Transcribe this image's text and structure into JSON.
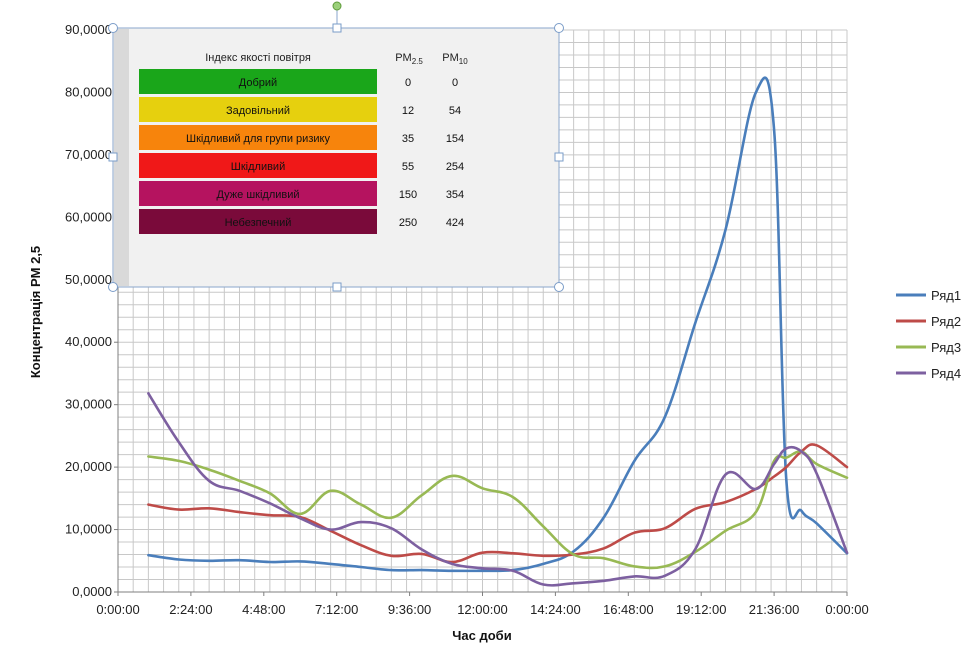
{
  "chart_data": {
    "type": "line",
    "xlabel": "Час доби",
    "ylabel": "Концентрація PM 2,5",
    "ylim": [
      0,
      90
    ],
    "xlim_hours": [
      0,
      24
    ],
    "x_tick_labels": [
      "0:00:00",
      "2:24:00",
      "4:48:00",
      "7:12:00",
      "9:36:00",
      "12:00:00",
      "14:24:00",
      "16:48:00",
      "19:12:00",
      "21:36:00",
      "0:00:00"
    ],
    "y_tick_labels": [
      "0,0000",
      "10,0000",
      "20,0000",
      "30,0000",
      "40,0000",
      "50,0000",
      "60,0000",
      "70,0000",
      "80,0000",
      "90,0000"
    ],
    "grid": true,
    "legend_position": "right",
    "x_hours": [
      1,
      2,
      3,
      4,
      5,
      6,
      7,
      8,
      9,
      10,
      11,
      12,
      13,
      14,
      15,
      16,
      17,
      18,
      19,
      20,
      21,
      21.6,
      22,
      22.5,
      23,
      24
    ],
    "series": [
      {
        "name": "Ряд1",
        "color": "#4a7ebb",
        "values": [
          5.9,
          5.2,
          5.0,
          5.1,
          4.8,
          4.9,
          4.5,
          4.0,
          3.5,
          3.5,
          3.4,
          3.4,
          3.5,
          4.5,
          6.5,
          12,
          21,
          28,
          43,
          58,
          80,
          74,
          18,
          13,
          11,
          6.2
        ]
      },
      {
        "name": "Ряд2",
        "color": "#be4b48",
        "values": [
          14.0,
          13.2,
          13.4,
          12.8,
          12.3,
          12.0,
          9.8,
          7.5,
          5.8,
          6.1,
          4.8,
          6.3,
          6.2,
          5.8,
          6.0,
          7.0,
          9.5,
          10.2,
          13.3,
          14.4,
          16.5,
          18.5,
          20.0,
          22.5,
          23.5,
          20.0
        ]
      },
      {
        "name": "Ряд3",
        "color": "#98b954",
        "values": [
          21.7,
          21.0,
          19.6,
          17.8,
          15.8,
          12.5,
          16.2,
          14.0,
          11.9,
          15.5,
          18.6,
          16.6,
          15.2,
          10.5,
          6.0,
          5.4,
          4.1,
          4.1,
          6.4,
          9.8,
          12.8,
          21,
          21.5,
          22.5,
          20.5,
          18.3
        ]
      },
      {
        "name": "Ряд4",
        "color": "#7d60a0",
        "values": [
          31.8,
          24.0,
          17.8,
          16.2,
          14.2,
          11.8,
          10.0,
          11.2,
          10.2,
          6.8,
          4.5,
          3.8,
          3.4,
          1.2,
          1.4,
          1.8,
          2.5,
          2.6,
          6.8,
          18.8,
          16.5,
          20.5,
          23.0,
          22.5,
          19.0,
          6.3
        ]
      }
    ]
  },
  "aqi_table": {
    "header_index": "Індекс якості повітря",
    "header_pm25_main": "PM",
    "header_pm25_sub": "2.5",
    "header_pm10_main": "PM",
    "header_pm10_sub": "10",
    "rows": [
      {
        "label": "Добрий",
        "pm25": "0",
        "pm10": "0",
        "color": "#1aa61a",
        "text_color": "#111111"
      },
      {
        "label": "Задовільний",
        "pm25": "12",
        "pm10": "54",
        "color": "#e6d00e",
        "text_color": "#111111"
      },
      {
        "label": "Шкідливий для групи ризику",
        "pm25": "35",
        "pm10": "154",
        "color": "#f7840c",
        "text_color": "#111111"
      },
      {
        "label": "Шкідливий",
        "pm25": "55",
        "pm10": "254",
        "color": "#f01818",
        "text_color": "#ffffff"
      },
      {
        "label": "Дуже шкідливий",
        "pm25": "150",
        "pm10": "354",
        "color": "#b5135f",
        "text_color": "#ffffff"
      },
      {
        "label": "Небезпечний",
        "pm25": "250",
        "pm10": "424",
        "color": "#7a0a3a",
        "text_color": "#ffffff"
      }
    ]
  }
}
